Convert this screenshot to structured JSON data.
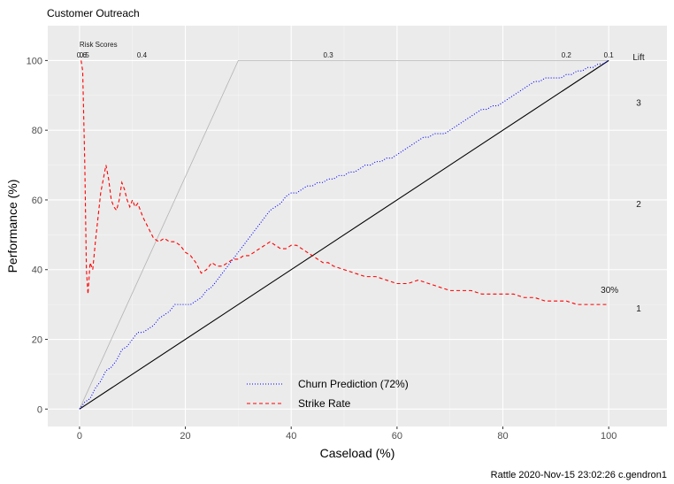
{
  "chart_data": {
    "type": "line",
    "title": "Customer Outreach",
    "xlabel": "Caseload (%)",
    "ylabel": "Performance (%)",
    "xlim": [
      -6,
      111
    ],
    "ylim": [
      -5,
      110
    ],
    "xticks": [
      0,
      20,
      40,
      60,
      80,
      100
    ],
    "yticks": [
      0,
      20,
      40,
      60,
      80,
      100
    ],
    "caption": "Rattle 2020-Nov-15 23:02:26 c.gendron1",
    "risk_scores_label": "Risk Scores",
    "risk_scores": [
      {
        "label": "0.6",
        "x": 0.4
      },
      {
        "label": "0.5",
        "x": 0.9
      },
      {
        "label": "0.4",
        "x": 11.8
      },
      {
        "label": "0.3",
        "x": 47.0
      },
      {
        "label": "0.2",
        "x": 92.0
      },
      {
        "label": "0.1",
        "x": 100.0
      }
    ],
    "lift_label": "Lift",
    "lift_ticks": [
      {
        "label": "3",
        "y": 88
      },
      {
        "label": "2",
        "y": 59
      },
      {
        "label": "1",
        "y": 29
      }
    ],
    "annotation": {
      "text": "30%",
      "x": 100,
      "y": 30
    },
    "series": [
      {
        "name": "Churn Prediction (72%)",
        "color": "#0000ff",
        "dash": "dotted",
        "x": [
          0,
          1,
          2,
          3,
          4,
          5,
          6,
          7,
          8,
          9,
          10,
          11,
          12,
          13,
          14,
          15,
          16,
          17,
          18,
          19,
          20,
          21,
          22,
          23,
          24,
          25,
          26,
          27,
          28,
          29,
          30,
          31,
          32,
          33,
          34,
          35,
          36,
          37,
          38,
          39,
          40,
          41,
          42,
          43,
          44,
          45,
          46,
          47,
          48,
          49,
          50,
          51,
          52,
          53,
          54,
          55,
          56,
          57,
          58,
          59,
          60,
          61,
          62,
          63,
          64,
          65,
          66,
          67,
          68,
          69,
          70,
          71,
          72,
          73,
          74,
          75,
          76,
          77,
          78,
          79,
          80,
          81,
          82,
          83,
          84,
          85,
          86,
          87,
          88,
          89,
          90,
          91,
          92,
          93,
          94,
          95,
          96,
          97,
          98,
          99,
          100
        ],
        "y": [
          0,
          2,
          3,
          6,
          8,
          11,
          12,
          14,
          17,
          18,
          20,
          22,
          22,
          23,
          24,
          26,
          27,
          28,
          30,
          30,
          30,
          30,
          31,
          32,
          34,
          35,
          37,
          39,
          41,
          43,
          45,
          47,
          49,
          51,
          53,
          55,
          57,
          58,
          59,
          61,
          62,
          62,
          63,
          64,
          64,
          65,
          65,
          66,
          66,
          67,
          67,
          68,
          68,
          69,
          70,
          70,
          71,
          71,
          72,
          72,
          73,
          74,
          75,
          76,
          77,
          78,
          78,
          79,
          79,
          79,
          80,
          81,
          82,
          83,
          84,
          85,
          86,
          86,
          87,
          87,
          88,
          89,
          90,
          91,
          92,
          93,
          94,
          94,
          95,
          95,
          95,
          95,
          96,
          96,
          97,
          97,
          98,
          98,
          99,
          99,
          100
        ]
      },
      {
        "name": "Strike Rate",
        "color": "#ff0000",
        "dash": "dashed",
        "x": [
          0.3,
          0.6,
          1.0,
          1.3,
          1.6,
          2.0,
          2.5,
          3.0,
          3.5,
          4.0,
          4.5,
          5.0,
          5.5,
          6.0,
          6.5,
          7.0,
          7.5,
          8.0,
          8.5,
          9.0,
          9.5,
          10.0,
          10.5,
          11.0,
          11.5,
          12.0,
          13.0,
          14.0,
          15.0,
          16.0,
          17.0,
          18.0,
          19.0,
          20.0,
          21.0,
          22.0,
          23.0,
          24.0,
          25.0,
          26.0,
          27.0,
          28.0,
          29.0,
          30.0,
          31.0,
          32.0,
          33.0,
          34.0,
          35.0,
          36.0,
          37.0,
          38.0,
          39.0,
          40.0,
          41.0,
          42.0,
          43.0,
          44.0,
          45.0,
          46.0,
          47.0,
          48.0,
          50.0,
          52.0,
          54.0,
          56.0,
          58.0,
          60.0,
          62.0,
          64.0,
          66.0,
          68.0,
          70.0,
          72.0,
          74.0,
          76.0,
          78.0,
          80.0,
          82.0,
          84.0,
          86.0,
          88.0,
          90.0,
          92.0,
          94.0,
          96.0,
          98.0,
          100.0
        ],
        "y": [
          100,
          97,
          70,
          40,
          33,
          42,
          40,
          48,
          55,
          62,
          66,
          70,
          66,
          60,
          58,
          57,
          60,
          65,
          63,
          60,
          58,
          60,
          58,
          59,
          57,
          55,
          52,
          49,
          48,
          49,
          48,
          48,
          47,
          45,
          44,
          42,
          39,
          40,
          42,
          41,
          41,
          42,
          43,
          43,
          44,
          44,
          45,
          46,
          47,
          48,
          47,
          46,
          46,
          47,
          47,
          46,
          45,
          44,
          43,
          42,
          42,
          41,
          40,
          39,
          38,
          38,
          37,
          36,
          36,
          37,
          36,
          35,
          34,
          34,
          34,
          33,
          33,
          33,
          33,
          32,
          32,
          31,
          31,
          31,
          30,
          30,
          30,
          30
        ]
      },
      {
        "name": "",
        "color": "#000000",
        "dash": "solid",
        "x": [
          0,
          100
        ],
        "y": [
          0,
          100
        ]
      },
      {
        "name": "",
        "color": "#b3b3b3",
        "dash": "solid",
        "x": [
          0,
          30,
          100
        ],
        "y": [
          0,
          100,
          100
        ]
      }
    ],
    "legend_position": "bottom-center",
    "grid": true
  }
}
